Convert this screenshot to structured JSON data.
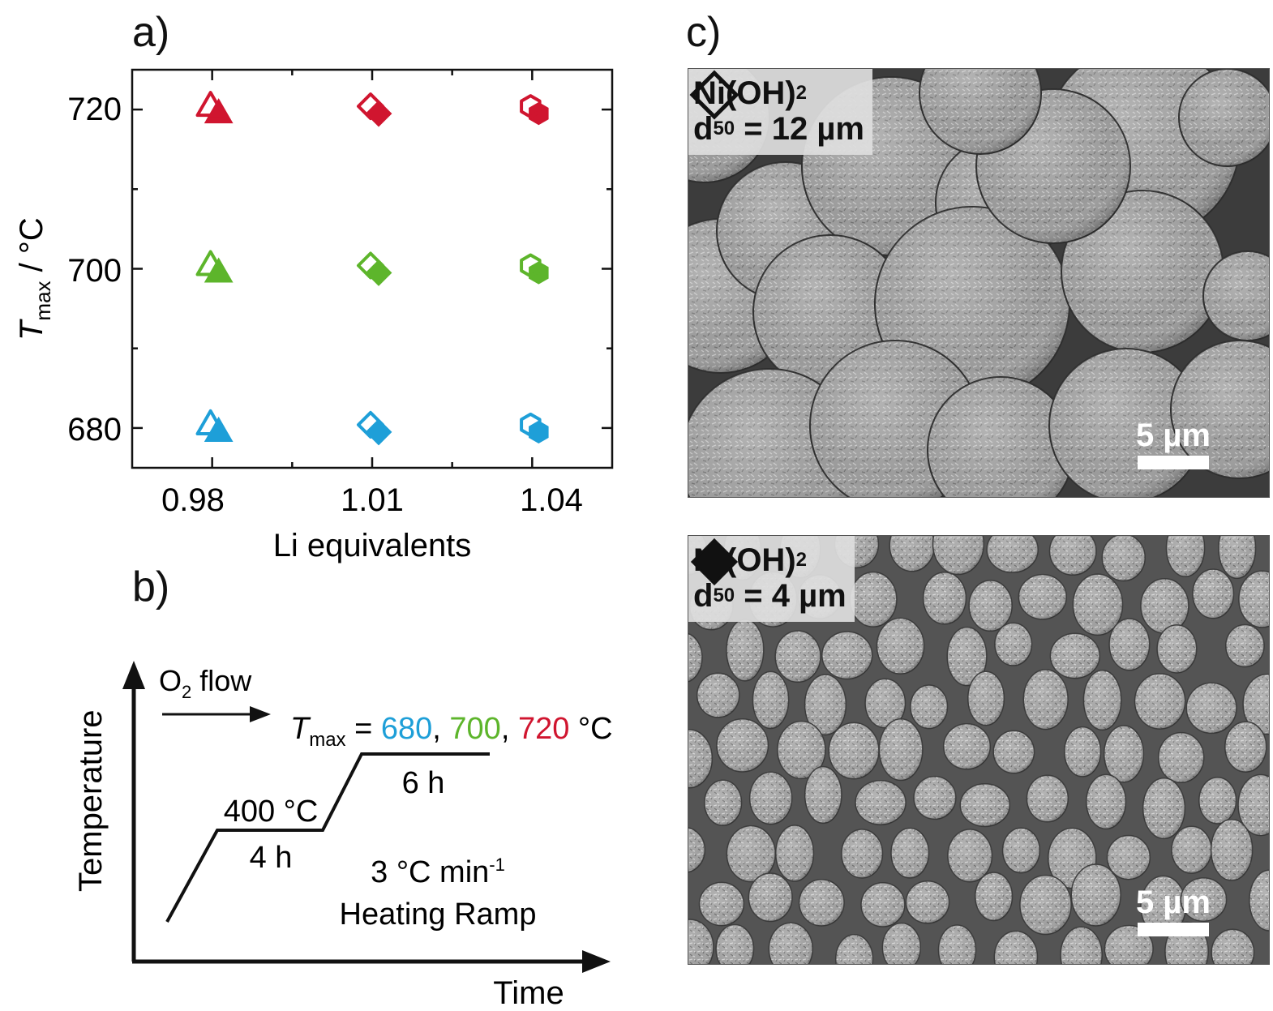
{
  "panels": {
    "a": "a)",
    "b": "b)",
    "c": "c)"
  },
  "chart_data": {
    "type": "scatter",
    "xlabel": "Li equivalents",
    "ylabel_main": "T",
    "ylabel_sub": "max",
    "ylabel_unit": " / °C",
    "x_categories": [
      "0.98",
      "1.01",
      "1.04"
    ],
    "y_ticks": [
      "680",
      "700",
      "720"
    ],
    "xlim": [
      0.965,
      1.055
    ],
    "ylim": [
      675,
      725
    ],
    "series": [
      {
        "color": "#1e9fd8",
        "points": [
          {
            "x": 0.98,
            "y": 680,
            "marker": "triangle"
          },
          {
            "x": 1.01,
            "y": 680,
            "marker": "diamond"
          },
          {
            "x": 1.04,
            "y": 680,
            "marker": "hexagon"
          }
        ]
      },
      {
        "color": "#5db52b",
        "points": [
          {
            "x": 0.98,
            "y": 700,
            "marker": "triangle"
          },
          {
            "x": 1.01,
            "y": 700,
            "marker": "diamond"
          },
          {
            "x": 1.04,
            "y": 700,
            "marker": "hexagon"
          }
        ]
      },
      {
        "color": "#d0152f",
        "points": [
          {
            "x": 0.98,
            "y": 720,
            "marker": "triangle"
          },
          {
            "x": 1.01,
            "y": 720,
            "marker": "diamond"
          },
          {
            "x": 1.04,
            "y": 720,
            "marker": "hexagon"
          }
        ]
      }
    ],
    "grid": false
  },
  "schedule": {
    "y_axis": "Temperature",
    "x_axis": "Time",
    "flow": "O",
    "flow_sub": "2",
    "flow_rest": " flow",
    "tmax_main": "T",
    "tmax_sub": "max",
    "tmax_eq": " = ",
    "t1": "680",
    "sep1": ", ",
    "t2": "700",
    "sep2": ", ",
    "t3": "720",
    "unit": " °C",
    "colors": {
      "t1": "#1e9fd8",
      "t2": "#5db52b",
      "t3": "#d0152f"
    },
    "step1_temp": "400 °C",
    "step1_time": "4 h",
    "step2_time": "6 h",
    "ramp_rate": "3 °C min",
    "ramp_exp": "-1",
    "ramp_label": "Heating Ramp"
  },
  "sem": {
    "top": {
      "material": "Ni(OH)",
      "sub": "2",
      "d_label": "d",
      "d_sub": "50",
      "d_value": " = 12 µm",
      "symbol": "open-diamond",
      "scale": "5 µm"
    },
    "bottom": {
      "material": "Ni(OH)",
      "sub": "2",
      "d_label": "d",
      "d_sub": "50",
      "d_value": " = 4 µm",
      "symbol": "filled-diamond",
      "scale": "5 µm"
    }
  }
}
